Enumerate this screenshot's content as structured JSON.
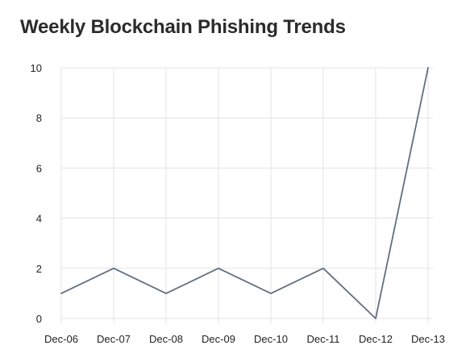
{
  "chart_data": {
    "type": "line",
    "title": "Weekly Blockchain Phishing Trends",
    "xlabel": "",
    "ylabel": "",
    "categories": [
      "Dec-06",
      "Dec-07",
      "Dec-08",
      "Dec-09",
      "Dec-10",
      "Dec-11",
      "Dec-12",
      "Dec-13"
    ],
    "series": [
      {
        "values": [
          1,
          2,
          1,
          2,
          1,
          2,
          0,
          10
        ]
      }
    ],
    "ylim": [
      0,
      10
    ],
    "yticks": [
      0,
      2,
      4,
      6,
      8,
      10
    ],
    "grid": true,
    "legend": "none",
    "colors": {
      "line": "#607080",
      "grid": "#e3e3e3"
    }
  }
}
